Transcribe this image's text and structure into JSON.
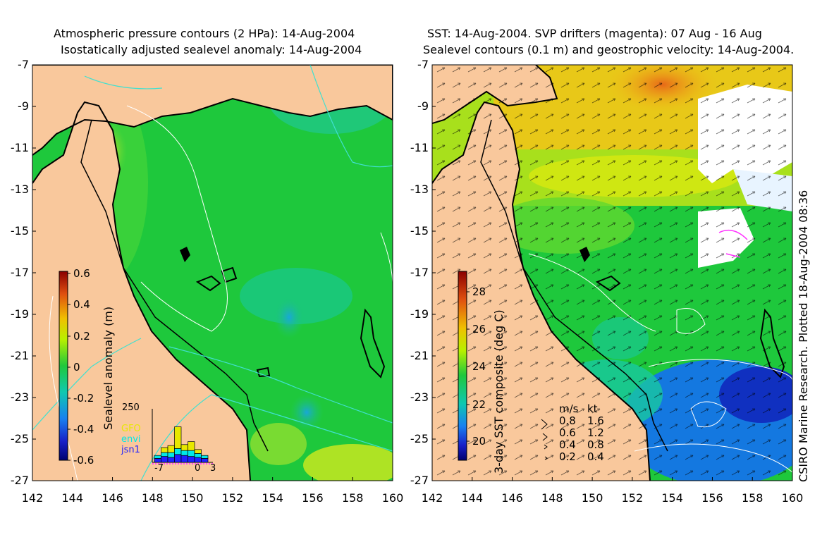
{
  "left_panel": {
    "title_line1": "Atmospheric pressure contours (2 HPa): 14-Aug-2004",
    "title_line2": "Isostatically adjusted sealevel anomaly: 14-Aug-2004",
    "colorbar_label": "Sealevel anomaly (m)",
    "colorbar_ticks": [
      "0.6",
      "0.4",
      "0.2",
      "0",
      "-0.2",
      "-0.4",
      "-0.6"
    ],
    "inset": {
      "y_label": "250",
      "x_ticks": [
        "-7",
        "0",
        "3"
      ],
      "legend": [
        {
          "name": "GFO",
          "color": "#e8e800"
        },
        {
          "name": "envi",
          "color": "#00e8e8"
        },
        {
          "name": "jsn1",
          "color": "#2020ff"
        }
      ],
      "bars": [
        {
          "jsn1": 20,
          "envi": 15,
          "GFO": 0
        },
        {
          "jsn1": 30,
          "envi": 20,
          "GFO": 25
        },
        {
          "jsn1": 25,
          "envi": 25,
          "GFO": 35
        },
        {
          "jsn1": 40,
          "envi": 30,
          "GFO": 110
        },
        {
          "jsn1": 35,
          "envi": 25,
          "GFO": 30
        },
        {
          "jsn1": 30,
          "envi": 30,
          "GFO": 45
        },
        {
          "jsn1": 25,
          "envi": 20,
          "GFO": 20
        },
        {
          "jsn1": 20,
          "envi": 15,
          "GFO": 0
        }
      ]
    }
  },
  "right_panel": {
    "title_line1": "SST: 14-Aug-2004. SVP drifters (magenta): 07 Aug - 16 Aug",
    "title_line2": "Sealevel contours (0.1 m) and geostrophic velocity: 14-Aug-2004.",
    "colorbar_label": "3-day SST composite (deg C)",
    "colorbar_ticks": [
      "28",
      "26",
      "24",
      "22",
      "20"
    ],
    "velocity_legend": {
      "header_ms": "m/s",
      "header_kt": "kt",
      "rows": [
        {
          "ms": "0.8",
          "kt": "1.6"
        },
        {
          "ms": "0.6",
          "kt": "1.2"
        },
        {
          "ms": "0.4",
          "kt": "0.8"
        },
        {
          "ms": "0.2",
          "kt": "0.4"
        }
      ]
    },
    "credit": "CSIRO Marine Research. Plotted 18-Aug-2004 08:36"
  },
  "axes": {
    "y_ticks": [
      "-7",
      "-9",
      "-11",
      "-13",
      "-15",
      "-17",
      "-19",
      "-21",
      "-23",
      "-25",
      "-27"
    ],
    "x_ticks": [
      "142",
      "144",
      "146",
      "148",
      "150",
      "152",
      "154",
      "156",
      "158",
      "160"
    ]
  },
  "colors": {
    "land": "#f9c89c",
    "ocean_base": "#1ec83c",
    "contour": "#ffffff",
    "cyan_contour": "#40e0d0",
    "coast": "#000000"
  }
}
